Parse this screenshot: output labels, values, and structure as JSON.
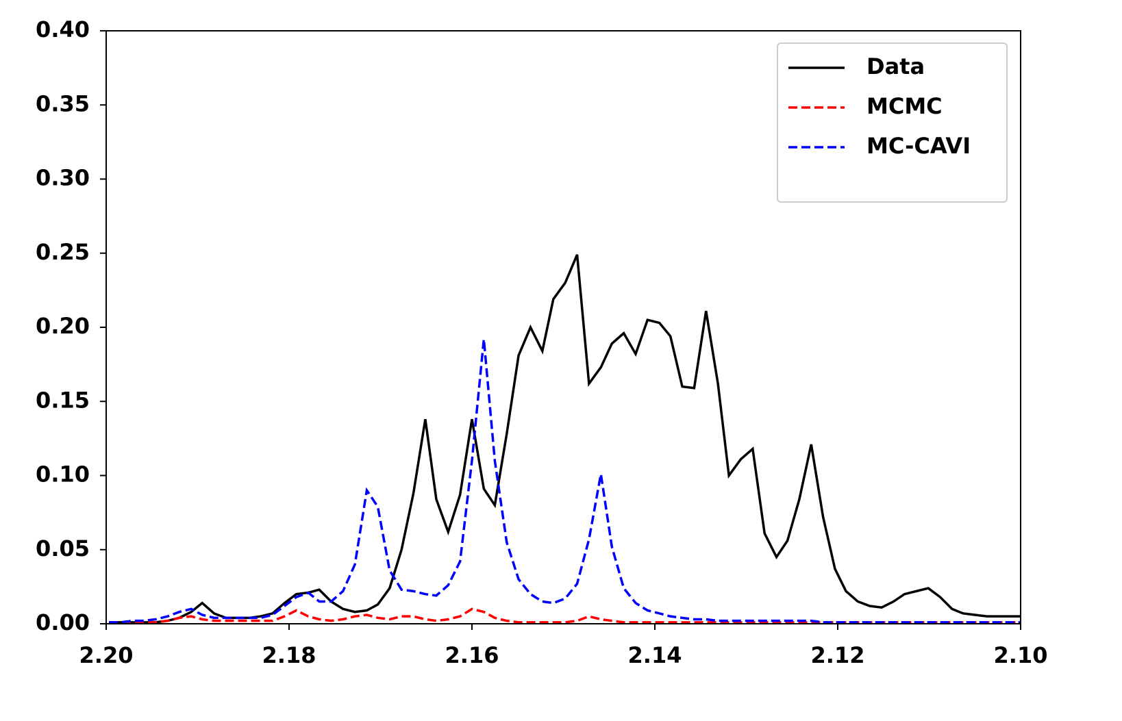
{
  "chart_data": {
    "type": "line",
    "x": [
      2.1997,
      2.1984,
      2.1971,
      2.1959,
      2.1946,
      2.1933,
      2.192,
      2.1907,
      2.1895,
      2.1882,
      2.1869,
      2.1856,
      2.1843,
      2.1831,
      2.1818,
      2.1805,
      2.1792,
      2.1779,
      2.1767,
      2.1754,
      2.1741,
      2.1728,
      2.1715,
      2.1703,
      2.169,
      2.1677,
      2.1664,
      2.1651,
      2.1639,
      2.1626,
      2.1613,
      2.16,
      2.1587,
      2.1575,
      2.1562,
      2.1549,
      2.1536,
      2.1523,
      2.1511,
      2.1498,
      2.1485,
      2.1472,
      2.1459,
      2.1447,
      2.1434,
      2.1421,
      2.1408,
      2.1395,
      2.1383,
      2.137,
      2.1357,
      2.1344,
      2.1331,
      2.1319,
      2.1306,
      2.1293,
      2.128,
      2.1267,
      2.1255,
      2.1242,
      2.1229,
      2.1216,
      2.1203,
      2.1191,
      2.1178,
      2.1165,
      2.1152,
      2.1139,
      2.1127,
      2.1114,
      2.1101,
      2.1088,
      2.1075,
      2.1063,
      2.105,
      2.1037,
      2.1024,
      2.1011,
      2.1
    ],
    "series": [
      {
        "name": "Data",
        "color": "#000000",
        "linestyle": "solid",
        "values": [
          0.001,
          0.001,
          0.001,
          0.001,
          0.001,
          0.002,
          0.004,
          0.008,
          0.014,
          0.007,
          0.004,
          0.004,
          0.004,
          0.005,
          0.007,
          0.014,
          0.02,
          0.021,
          0.023,
          0.015,
          0.01,
          0.008,
          0.009,
          0.013,
          0.024,
          0.05,
          0.088,
          0.138,
          0.084,
          0.062,
          0.087,
          0.138,
          0.091,
          0.08,
          0.128,
          0.181,
          0.2,
          0.184,
          0.219,
          0.23,
          0.249,
          0.162,
          0.173,
          0.189,
          0.196,
          0.182,
          0.205,
          0.203,
          0.194,
          0.16,
          0.159,
          0.211,
          0.162,
          0.1,
          0.111,
          0.118,
          0.061,
          0.045,
          0.056,
          0.084,
          0.121,
          0.072,
          0.037,
          0.022,
          0.015,
          0.012,
          0.011,
          0.015,
          0.02,
          0.022,
          0.024,
          0.018,
          0.01,
          0.007,
          0.006,
          0.005,
          0.005,
          0.005,
          0.005
        ]
      },
      {
        "name": "MCMC",
        "color": "#ff0000",
        "linestyle": "dashed",
        "values": [
          0.001,
          0.001,
          0.001,
          0.001,
          0.001,
          0.002,
          0.004,
          0.005,
          0.003,
          0.002,
          0.002,
          0.002,
          0.002,
          0.002,
          0.002,
          0.005,
          0.009,
          0.005,
          0.003,
          0.002,
          0.003,
          0.005,
          0.006,
          0.004,
          0.003,
          0.005,
          0.005,
          0.003,
          0.002,
          0.003,
          0.005,
          0.01,
          0.008,
          0.004,
          0.002,
          0.001,
          0.001,
          0.001,
          0.001,
          0.001,
          0.002,
          0.005,
          0.003,
          0.002,
          0.001,
          0.001,
          0.001,
          0.001,
          0.001,
          0.001,
          0.001,
          0.001,
          0.001,
          0.001,
          0.001,
          0.001,
          0.001,
          0.001,
          0.001,
          0.001,
          0.001,
          0.001,
          0.001,
          0.001,
          0.001,
          0.001,
          0.001,
          0.001,
          0.001,
          0.001,
          0.001,
          0.001,
          0.001,
          0.001,
          0.001,
          0.001,
          0.001,
          0.001,
          0.001
        ]
      },
      {
        "name": "MC-CAVI",
        "color": "#0000ff",
        "linestyle": "dashed",
        "values": [
          0.001,
          0.001,
          0.002,
          0.002,
          0.003,
          0.005,
          0.008,
          0.01,
          0.006,
          0.004,
          0.004,
          0.004,
          0.004,
          0.004,
          0.006,
          0.012,
          0.018,
          0.021,
          0.015,
          0.015,
          0.022,
          0.04,
          0.09,
          0.079,
          0.036,
          0.023,
          0.022,
          0.02,
          0.019,
          0.026,
          0.042,
          0.11,
          0.192,
          0.11,
          0.055,
          0.03,
          0.02,
          0.015,
          0.014,
          0.017,
          0.027,
          0.057,
          0.101,
          0.052,
          0.024,
          0.014,
          0.009,
          0.007,
          0.005,
          0.004,
          0.003,
          0.003,
          0.002,
          0.002,
          0.002,
          0.002,
          0.002,
          0.002,
          0.002,
          0.002,
          0.002,
          0.001,
          0.001,
          0.001,
          0.001,
          0.001,
          0.001,
          0.001,
          0.001,
          0.001,
          0.001,
          0.001,
          0.001,
          0.001,
          0.001,
          0.001,
          0.001,
          0.001,
          0.001
        ]
      }
    ],
    "xlim": [
      2.2,
      2.1
    ],
    "xticks": [
      {
        "value": 2.2,
        "label": "2.20"
      },
      {
        "value": 2.18,
        "label": "2.18"
      },
      {
        "value": 2.16,
        "label": "2.16"
      },
      {
        "value": 2.14,
        "label": "2.14"
      },
      {
        "value": 2.12,
        "label": "2.12"
      },
      {
        "value": 2.1,
        "label": "2.10"
      }
    ],
    "ylim": [
      0,
      0.4
    ],
    "yticks": [
      {
        "value": 0,
        "label": "0.00"
      },
      {
        "value": 0.05,
        "label": "0.05"
      },
      {
        "value": 0.1,
        "label": "0.10"
      },
      {
        "value": 0.15,
        "label": "0.15"
      },
      {
        "value": 0.2,
        "label": "0.20"
      },
      {
        "value": 0.25,
        "label": "0.25"
      },
      {
        "value": 0.3,
        "label": "0.30"
      },
      {
        "value": 0.35,
        "label": "0.35"
      },
      {
        "value": 0.4,
        "label": "0.40"
      }
    ],
    "legend": "upper right",
    "grid": false
  }
}
